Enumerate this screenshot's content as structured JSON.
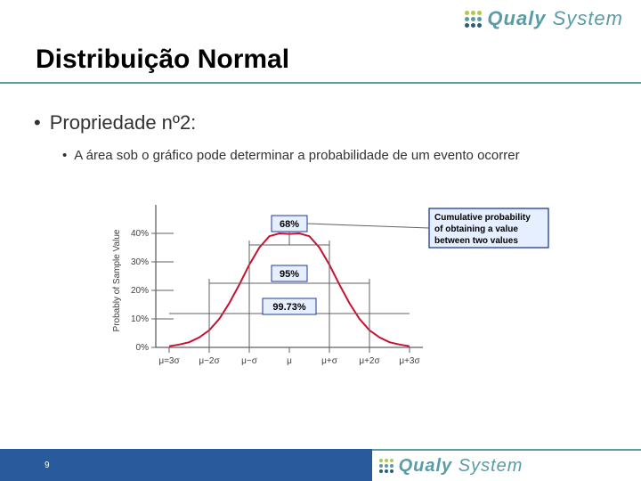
{
  "brand": {
    "name_part1": "Qualy ",
    "name_part2": "System",
    "text_color": "#5a9ba8",
    "dot_colors": [
      "#b0c850",
      "#b0c850",
      "#b0c850",
      "#5a9ba8",
      "#5a9ba8",
      "#5a9ba8",
      "#2a5d7a",
      "#2a5d7a",
      "#2a5d7a"
    ]
  },
  "title": {
    "text": "Distribuição Normal",
    "color": "#000000",
    "fontsize": 30,
    "underline_color": "#5a9ba8"
  },
  "bullets": {
    "level1": "Propriedade nº2:",
    "level2": "A área sob o gráfico pode determinar a probabilidade de um evento ocorrer",
    "color": "#323232"
  },
  "chart": {
    "type": "line",
    "y_axis_label": "Probably of Sample Value",
    "y_ticks": [
      "0%",
      "10%",
      "20%",
      "30%",
      "40%"
    ],
    "x_ticks": [
      "μ=3σ",
      "μ−2σ",
      "μ−σ",
      "μ",
      "μ+σ",
      "μ+2σ",
      "μ+3σ"
    ],
    "curve_color": "#c8102e",
    "curve_width": 2,
    "axis_color": "#606060",
    "grid_color": "#cccccc",
    "tick_font_size": 10,
    "label_font_size": 10,
    "boxes": {
      "box68": {
        "text": "68%",
        "border": "#1f3a93",
        "bg": "#e6efff"
      },
      "box95": {
        "text": "95%",
        "border": "#1f3a93",
        "bg": "#e6efff"
      },
      "box9973": {
        "text": "99.73%",
        "border": "#1f3a93",
        "bg": "#e6efff"
      },
      "cumulative": {
        "line1": "Cumulative probability",
        "line2": "of obtaining a value",
        "line3": "between two values",
        "border": "#1f3a93",
        "bg": "#e6efff"
      }
    },
    "curve_points": [
      [
        0,
        0.004
      ],
      [
        0.25,
        0.01
      ],
      [
        0.5,
        0.018
      ],
      [
        0.75,
        0.035
      ],
      [
        1,
        0.06
      ],
      [
        1.25,
        0.1
      ],
      [
        1.5,
        0.155
      ],
      [
        1.75,
        0.22
      ],
      [
        2,
        0.29
      ],
      [
        2.25,
        0.35
      ],
      [
        2.5,
        0.39
      ],
      [
        2.75,
        0.4
      ],
      [
        3,
        0.398
      ],
      [
        3.25,
        0.4
      ],
      [
        3.5,
        0.39
      ],
      [
        3.75,
        0.35
      ],
      [
        4,
        0.29
      ],
      [
        4.25,
        0.22
      ],
      [
        4.5,
        0.155
      ],
      [
        4.75,
        0.1
      ],
      [
        5,
        0.06
      ],
      [
        5.25,
        0.035
      ],
      [
        5.5,
        0.018
      ],
      [
        5.75,
        0.01
      ],
      [
        6,
        0.004
      ]
    ]
  },
  "footer": {
    "page_number": "9",
    "bar_color": "#285a9c"
  }
}
